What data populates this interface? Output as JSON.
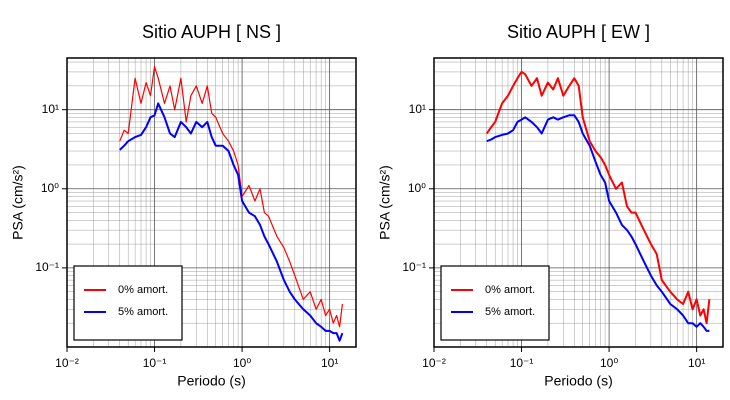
{
  "chart_data": [
    {
      "type": "line",
      "title": "Sitio AUPH [ NS ]",
      "x_label": "Periodo (s)",
      "y_label": "PSA (cm/s²)",
      "xscale": "log",
      "yscale": "log",
      "grid": true,
      "minor_grid": true,
      "legend": "lower left",
      "xlim": [
        0.01,
        20
      ],
      "ylim": [
        0.01,
        45
      ],
      "xticks": [
        {
          "value": 0.01,
          "label": "10⁻²"
        },
        {
          "value": 0.1,
          "label": "10⁻¹"
        },
        {
          "value": 1,
          "label": "10⁰"
        },
        {
          "value": 10,
          "label": "10¹"
        }
      ],
      "yticks": [
        {
          "value": 0.1,
          "label": "10⁻¹"
        },
        {
          "value": 1,
          "label": "10⁰"
        },
        {
          "value": 10,
          "label": "10¹"
        }
      ],
      "x": [
        0.04,
        0.045,
        0.05,
        0.06,
        0.07,
        0.08,
        0.09,
        0.1,
        0.11,
        0.13,
        0.15,
        0.17,
        0.2,
        0.23,
        0.26,
        0.3,
        0.35,
        0.4,
        0.45,
        0.5,
        0.6,
        0.7,
        0.8,
        0.9,
        1.0,
        1.2,
        1.4,
        1.6,
        1.8,
        2.0,
        2.5,
        3,
        3.5,
        4,
        5,
        6,
        7,
        8,
        9,
        10,
        11,
        12,
        13,
        14
      ],
      "series": [
        {
          "name": "0% amort.",
          "color": "#ff0000",
          "width": 1.2,
          "values": [
            4,
            5.5,
            5,
            25,
            12,
            22,
            15,
            35,
            25,
            12,
            20,
            10,
            25,
            7,
            15,
            20,
            12,
            20,
            9,
            8,
            5,
            4,
            3,
            2,
            0.8,
            1.1,
            0.7,
            1.0,
            0.5,
            0.45,
            0.25,
            0.18,
            0.12,
            0.08,
            0.04,
            0.05,
            0.03,
            0.04,
            0.025,
            0.03,
            0.02,
            0.025,
            0.018,
            0.035
          ]
        },
        {
          "name": "5% amort.",
          "color": "#0000ff",
          "width": 2,
          "values": [
            3.1,
            3.5,
            4,
            4.5,
            4.8,
            6,
            8,
            8.5,
            12,
            8,
            5,
            4.5,
            7,
            6,
            5,
            7,
            6,
            7,
            4.5,
            3.5,
            3.5,
            3,
            2,
            1.5,
            0.7,
            0.5,
            0.45,
            0.35,
            0.25,
            0.2,
            0.12,
            0.07,
            0.05,
            0.04,
            0.03,
            0.025,
            0.02,
            0.018,
            0.016,
            0.016,
            0.015,
            0.015,
            0.012,
            0.015
          ]
        }
      ]
    },
    {
      "type": "line",
      "title": "Sitio AUPH [ EW ]",
      "x_label": "Periodo (s)",
      "y_label": "PSA (cm/s²)",
      "xscale": "log",
      "yscale": "log",
      "grid": true,
      "minor_grid": true,
      "legend": "lower left",
      "xlim": [
        0.01,
        20
      ],
      "ylim": [
        0.01,
        45
      ],
      "xticks": [
        {
          "value": 0.01,
          "label": "10⁻²"
        },
        {
          "value": 0.1,
          "label": "10⁻¹"
        },
        {
          "value": 1,
          "label": "10⁰"
        },
        {
          "value": 10,
          "label": "10¹"
        }
      ],
      "yticks": [
        {
          "value": 0.1,
          "label": "10⁻¹"
        },
        {
          "value": 1,
          "label": "10⁰"
        },
        {
          "value": 10,
          "label": "10¹"
        }
      ],
      "x": [
        0.04,
        0.045,
        0.05,
        0.06,
        0.07,
        0.08,
        0.09,
        0.1,
        0.11,
        0.13,
        0.15,
        0.17,
        0.2,
        0.23,
        0.26,
        0.3,
        0.35,
        0.4,
        0.45,
        0.5,
        0.6,
        0.7,
        0.8,
        0.9,
        1.0,
        1.2,
        1.4,
        1.6,
        1.8,
        2.0,
        2.5,
        3,
        3.5,
        4,
        5,
        6,
        7,
        8,
        9,
        10,
        11,
        12,
        13,
        14
      ],
      "series": [
        {
          "name": "0% amort.",
          "color": "#ff0000",
          "width": 2,
          "values": [
            5,
            6,
            7,
            12,
            15,
            20,
            25,
            30,
            28,
            20,
            25,
            15,
            22,
            18,
            25,
            15,
            20,
            25,
            20,
            8,
            4,
            3,
            2.5,
            2,
            1.5,
            1.0,
            1.2,
            0.6,
            0.5,
            0.5,
            0.3,
            0.2,
            0.15,
            0.07,
            0.05,
            0.04,
            0.035,
            0.05,
            0.03,
            0.04,
            0.025,
            0.03,
            0.02,
            0.04
          ]
        },
        {
          "name": "5% amort.",
          "color": "#0000ff",
          "width": 2,
          "values": [
            4,
            4.2,
            4.5,
            4.8,
            5,
            5.5,
            7,
            7.5,
            8,
            7,
            6,
            5,
            7.5,
            8,
            7.5,
            8,
            8.5,
            8.5,
            7,
            5,
            3.5,
            2.2,
            1.5,
            1.2,
            0.7,
            0.5,
            0.35,
            0.3,
            0.25,
            0.2,
            0.12,
            0.08,
            0.06,
            0.05,
            0.035,
            0.03,
            0.025,
            0.02,
            0.02,
            0.018,
            0.02,
            0.018,
            0.016,
            0.016
          ]
        }
      ]
    }
  ]
}
